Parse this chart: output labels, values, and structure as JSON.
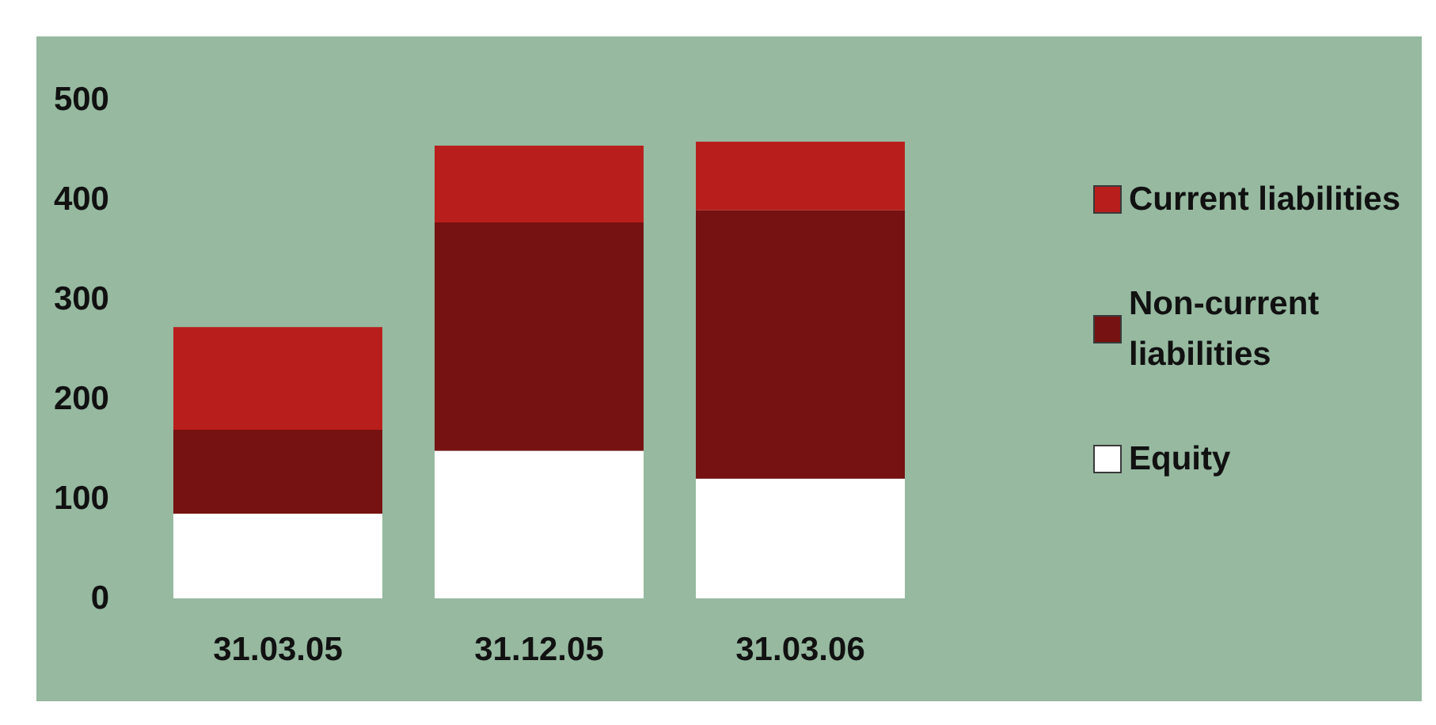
{
  "chart_data": {
    "type": "bar",
    "stacked": true,
    "categories": [
      "31.03.05",
      "31.12.05",
      "31.03.06"
    ],
    "series": [
      {
        "name": "Equity",
        "color": "#ffffff",
        "values": [
          85,
          148,
          120
        ]
      },
      {
        "name": "Non-current liabilities",
        "color": "#761211",
        "values": [
          84,
          229,
          269
        ]
      },
      {
        "name": "Current liabilities",
        "color": "#b81f1c",
        "values": [
          103,
          77,
          69
        ]
      }
    ],
    "ylim": [
      0,
      500
    ],
    "yticks": [
      0,
      100,
      200,
      300,
      400,
      500
    ],
    "grid": false,
    "legend": "right"
  }
}
